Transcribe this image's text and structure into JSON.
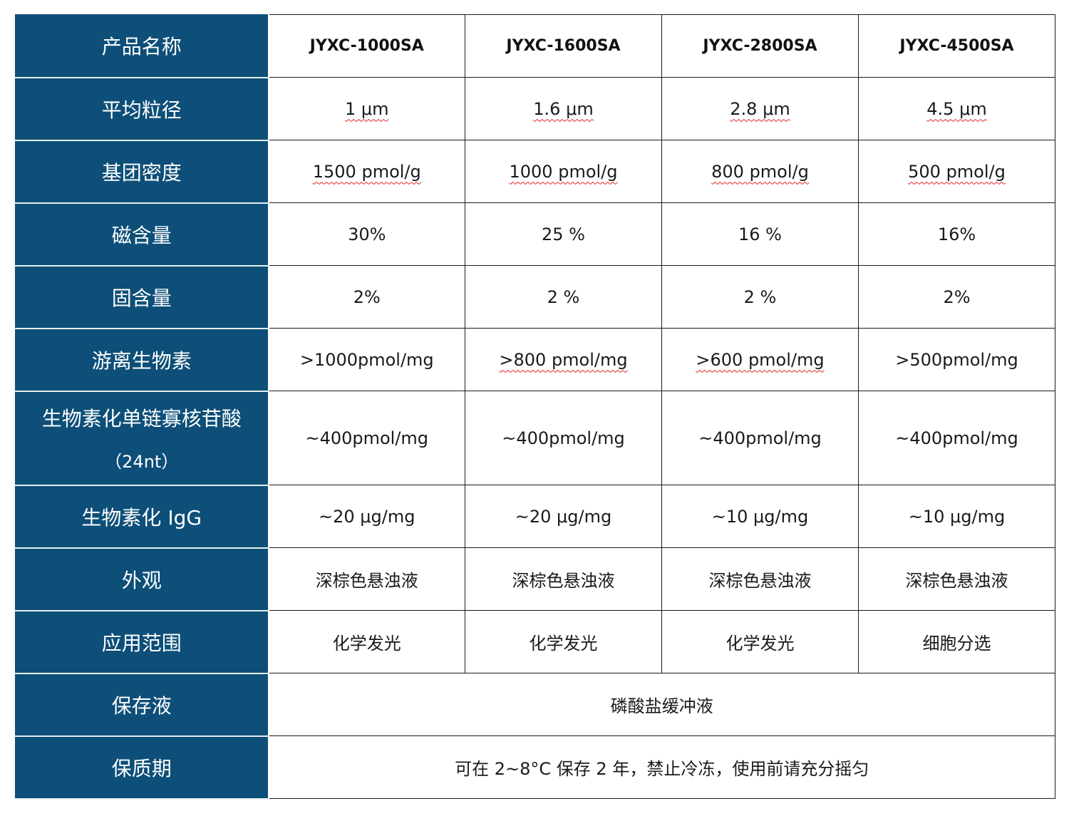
{
  "header": {
    "label": "产品名称",
    "products": [
      "JYXC-1000SA",
      "JYXC-1600SA",
      "JYXC-2800SA",
      "JYXC-4500SA"
    ]
  },
  "rows": [
    {
      "label": "平均粒径",
      "values": [
        "1 μm",
        "1.6 μm",
        "2.8 μm",
        "4.5 μm"
      ]
    },
    {
      "label": "基团密度",
      "values": [
        "1500 pmol/g",
        "1000 pmol/g",
        "800 pmol/g",
        "500 pmol/g"
      ]
    },
    {
      "label": "磁含量",
      "values": [
        "30%",
        "25 %",
        "16 %",
        "16%"
      ]
    },
    {
      "label": "固含量",
      "values": [
        "2%",
        "2 %",
        "2 %",
        "2%"
      ]
    },
    {
      "label": "游离生物素",
      "values": [
        ">1000pmol/mg",
        ">800 pmol/mg",
        ">600 pmol/mg",
        ">500pmol/mg"
      ]
    },
    {
      "label": "生物素化单链寡核苷酸",
      "label_line2": "（24nt）",
      "values": [
        "~400pmol/mg",
        "~400pmol/mg",
        "~400pmol/mg",
        "~400pmol/mg"
      ]
    },
    {
      "label": "生物素化 IgG",
      "values": [
        "~20 μg/mg",
        "~20 μg/mg",
        "~10 μg/mg",
        "~10 μg/mg"
      ]
    },
    {
      "label": "外观",
      "values": [
        "深棕色悬浊液",
        "深棕色悬浊液",
        "深棕色悬浊液",
        "深棕色悬浊液"
      ]
    },
    {
      "label": "应用范围",
      "values": [
        "化学发光",
        "化学发光",
        "化学发光",
        "细胞分选"
      ]
    }
  ],
  "storage_buffer": {
    "label": "保存液",
    "value": "磷酸盐缓冲液"
  },
  "shelf_life": {
    "label": "保质期",
    "value": "可在 2~8°C 保存 2 年，禁止冷冻，使用前请充分摇匀"
  },
  "colors": {
    "label_bg": "#0d4f78",
    "label_text": "#ffffff",
    "spellcheck": "#e02020"
  }
}
